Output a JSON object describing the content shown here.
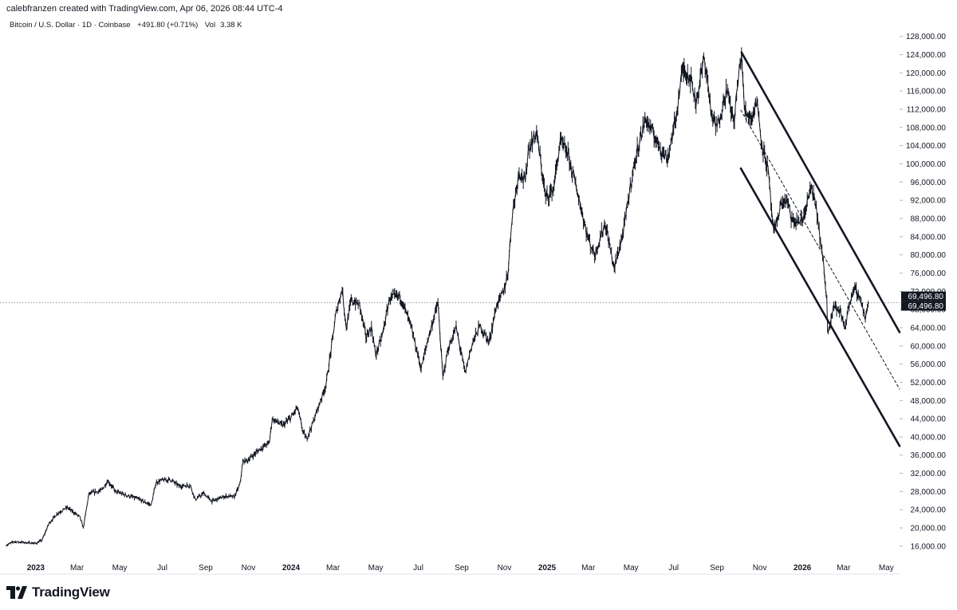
{
  "header": {
    "attribution": "calebfranzen created with TradingView.com, Apr 06, 2026 08:44 UTC-4"
  },
  "legend": {
    "symbol": "Bitcoin / U.S. Dollar · 1D · Coinbase",
    "change": "+491.80 (+0.71%)",
    "volume_label": "Vol",
    "volume": "3.38 K"
  },
  "footer": {
    "brand": "TradingView",
    "logo_icon": "tradingview-logo-icon"
  },
  "colors": {
    "price": "#131722",
    "grid": "#e0e3eb",
    "dotted": "#9598a1",
    "label_bg": "#131722",
    "label_fg": "#ffffff"
  },
  "chart_data": {
    "type": "line",
    "title": "Bitcoin / U.S. Dollar · 1D · Coinbase",
    "xlabel": "",
    "ylabel": "",
    "ylim": [
      13000,
      129000
    ],
    "xlim": [
      "2022-11-20",
      "2026-05-20"
    ],
    "y_ticks": [
      16000,
      20000,
      24000,
      28000,
      32000,
      36000,
      40000,
      44000,
      48000,
      52000,
      56000,
      60000,
      64000,
      68000,
      72000,
      76000,
      80000,
      84000,
      88000,
      92000,
      96000,
      100000,
      104000,
      108000,
      112000,
      116000,
      120000,
      124000,
      128000
    ],
    "y_tick_labels": [
      "16,000.00",
      "20,000.00",
      "24,000.00",
      "28,000.00",
      "32,000.00",
      "36,000.00",
      "40,000.00",
      "44,000.00",
      "48,000.00",
      "52,000.00",
      "56,000.00",
      "60,000.00",
      "64,000.00",
      "68,000.00",
      "72,000.00",
      "76,000.00",
      "80,000.00",
      "84,000.00",
      "88,000.00",
      "92,000.00",
      "96,000.00",
      "100,000.00",
      "104,000.00",
      "108,000.00",
      "112,000.00",
      "116,000.00",
      "120,000.00",
      "124,000.00",
      "128,000.00"
    ],
    "x_ticks": [
      {
        "date": "2023-01-01",
        "label": "2023",
        "year": true
      },
      {
        "date": "2023-03-01",
        "label": "Mar"
      },
      {
        "date": "2023-05-01",
        "label": "May"
      },
      {
        "date": "2023-07-01",
        "label": "Jul"
      },
      {
        "date": "2023-09-01",
        "label": "Sep"
      },
      {
        "date": "2023-11-01",
        "label": "Nov"
      },
      {
        "date": "2024-01-01",
        "label": "2024",
        "year": true
      },
      {
        "date": "2024-03-01",
        "label": "Mar"
      },
      {
        "date": "2024-05-01",
        "label": "May"
      },
      {
        "date": "2024-07-01",
        "label": "Jul"
      },
      {
        "date": "2024-09-01",
        "label": "Sep"
      },
      {
        "date": "2024-11-01",
        "label": "Nov"
      },
      {
        "date": "2025-01-01",
        "label": "2025",
        "year": true
      },
      {
        "date": "2025-03-01",
        "label": "Mar"
      },
      {
        "date": "2025-05-01",
        "label": "May"
      },
      {
        "date": "2025-07-01",
        "label": "Jul"
      },
      {
        "date": "2025-09-01",
        "label": "Sep"
      },
      {
        "date": "2025-11-01",
        "label": "Nov"
      },
      {
        "date": "2026-01-01",
        "label": "2026",
        "year": true
      },
      {
        "date": "2026-03-01",
        "label": "Mar"
      },
      {
        "date": "2026-05-01",
        "label": "May"
      }
    ],
    "last_price": 69496.8,
    "last_price_labels": [
      "69,496.80",
      "69,496.80"
    ],
    "series": [
      {
        "x": [
          "2022-11-20",
          "2022-12-01",
          "2022-12-15",
          "2023-01-01",
          "2023-01-10",
          "2023-01-20",
          "2023-02-01",
          "2023-02-15",
          "2023-03-05",
          "2023-03-10",
          "2023-03-18",
          "2023-03-25",
          "2023-04-05",
          "2023-04-14",
          "2023-04-25",
          "2023-05-10",
          "2023-05-25",
          "2023-06-10",
          "2023-06-15",
          "2023-06-22",
          "2023-07-01",
          "2023-07-13",
          "2023-07-25",
          "2023-08-10",
          "2023-08-17",
          "2023-08-29",
          "2023-09-10",
          "2023-09-20",
          "2023-10-01",
          "2023-10-12",
          "2023-10-20",
          "2023-10-24",
          "2023-11-01",
          "2023-11-15",
          "2023-12-01",
          "2023-12-05",
          "2023-12-10",
          "2023-12-20",
          "2024-01-01",
          "2024-01-10",
          "2024-01-18",
          "2024-01-23",
          "2024-02-01",
          "2024-02-10",
          "2024-02-20",
          "2024-02-28",
          "2024-03-05",
          "2024-03-14",
          "2024-03-20",
          "2024-03-27",
          "2024-04-08",
          "2024-04-17",
          "2024-04-25",
          "2024-05-01",
          "2024-05-10",
          "2024-05-21",
          "2024-06-05",
          "2024-06-20",
          "2024-07-05",
          "2024-07-14",
          "2024-07-29",
          "2024-08-05",
          "2024-08-12",
          "2024-08-24",
          "2024-09-06",
          "2024-09-15",
          "2024-09-27",
          "2024-10-10",
          "2024-10-21",
          "2024-10-31",
          "2024-11-06",
          "2024-11-12",
          "2024-11-22",
          "2024-12-01",
          "2024-12-05",
          "2024-12-17",
          "2024-12-30",
          "2025-01-10",
          "2025-01-20",
          "2025-01-31",
          "2025-02-10",
          "2025-02-28",
          "2025-03-10",
          "2025-03-25",
          "2025-04-07",
          "2025-04-20",
          "2025-05-01",
          "2025-05-10",
          "2025-05-22",
          "2025-06-05",
          "2025-06-22",
          "2025-07-03",
          "2025-07-14",
          "2025-07-25",
          "2025-08-02",
          "2025-08-14",
          "2025-08-25",
          "2025-09-01",
          "2025-09-15",
          "2025-09-25",
          "2025-10-01",
          "2025-10-06",
          "2025-10-10",
          "2025-10-20",
          "2025-10-28",
          "2025-11-04",
          "2025-11-13",
          "2025-11-21",
          "2025-12-01",
          "2025-12-10",
          "2025-12-18",
          "2026-01-01",
          "2026-01-14",
          "2026-01-22",
          "2026-01-31",
          "2026-02-05",
          "2026-02-06",
          "2026-02-15",
          "2026-02-25",
          "2026-03-03",
          "2026-03-10",
          "2026-03-17",
          "2026-03-25",
          "2026-04-01",
          "2026-04-06"
        ],
        "y": [
          16200,
          17000,
          16800,
          16600,
          17300,
          21000,
          23200,
          24500,
          22400,
          20000,
          27500,
          27800,
          28200,
          30400,
          28000,
          27200,
          26500,
          25400,
          25000,
          30000,
          30500,
          30600,
          29200,
          29400,
          26200,
          27600,
          25800,
          26500,
          27000,
          26800,
          29600,
          34500,
          35000,
          37000,
          38800,
          44000,
          43500,
          42500,
          44200,
          46500,
          41200,
          39500,
          43000,
          47000,
          51500,
          60000,
          67000,
          72500,
          64000,
          70000,
          69000,
          62000,
          64000,
          58000,
          62000,
          70500,
          71000,
          64500,
          55000,
          61000,
          69500,
          53000,
          59000,
          64000,
          54000,
          60000,
          64500,
          60800,
          69000,
          72000,
          76000,
          88500,
          98500,
          96000,
          103000,
          107000,
          92500,
          94500,
          105000,
          102000,
          96000,
          84000,
          80000,
          87000,
          77000,
          85000,
          96000,
          103000,
          110000,
          105500,
          101000,
          109000,
          121000,
          119000,
          113500,
          123500,
          110000,
          108000,
          116500,
          109000,
          118000,
          124500,
          112000,
          110000,
          114000,
          104500,
          98500,
          84500,
          91000,
          92000,
          87000,
          87500,
          95000,
          89000,
          78000,
          70000,
          63000,
          69000,
          67000,
          64000,
          70000,
          72500,
          70500,
          66000,
          69496.8
        ]
      }
    ],
    "annotations": [
      {
        "kind": "channel_upper",
        "from": {
          "x": "2025-10-06",
          "y": 124500
        },
        "to": {
          "x": "2026-05-20",
          "y": 63000
        }
      },
      {
        "kind": "channel_lower",
        "from": {
          "x": "2025-10-05",
          "y": 99000
        },
        "to": {
          "x": "2026-05-20",
          "y": 38000
        }
      },
      {
        "kind": "channel_midline",
        "from": {
          "x": "2025-10-05",
          "y": 111800
        },
        "to": {
          "x": "2026-05-20",
          "y": 50500
        }
      },
      {
        "kind": "last_price_line",
        "y": 69496.8
      }
    ]
  }
}
